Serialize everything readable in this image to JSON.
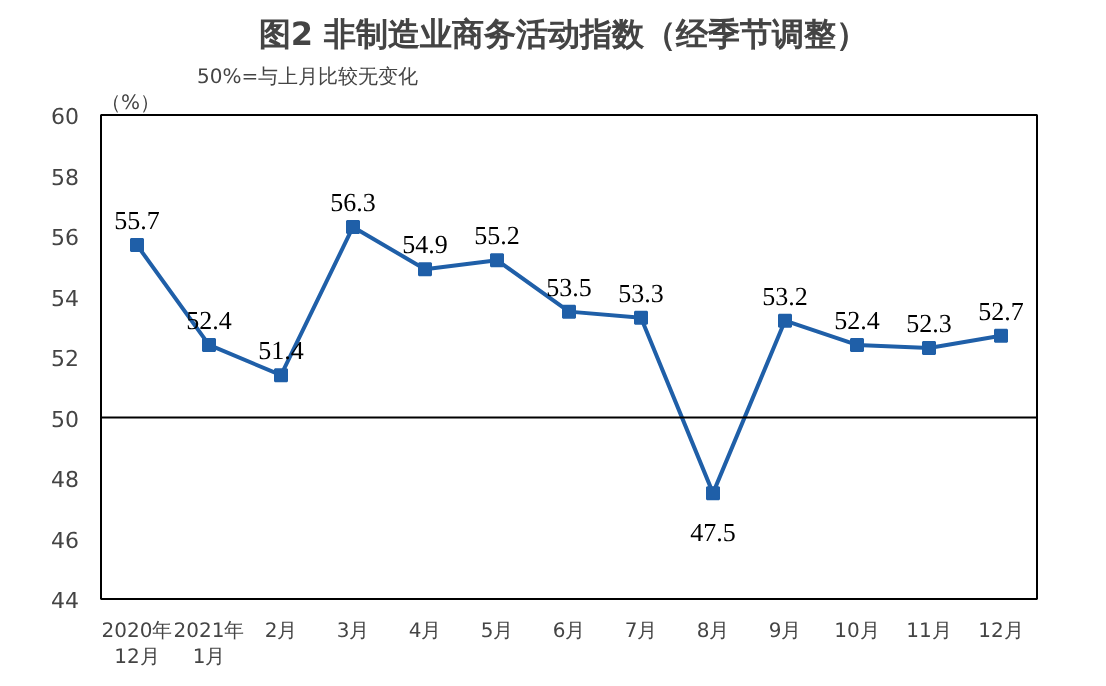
{
  "chart_data": {
    "type": "line",
    "title": "图2  非制造业商务活动指数（经季节调整）",
    "ylabel": "（%）",
    "annotations": [
      "50%=与上月比较无变化"
    ],
    "categories": [
      "2020年\n12月",
      "2021年\n1月",
      "2月",
      "3月",
      "4月",
      "5月",
      "6月",
      "7月",
      "8月",
      "9月",
      "10月",
      "11月",
      "12月"
    ],
    "series": [
      {
        "color": "#1f5fa8",
        "values": [
          55.7,
          52.4,
          51.4,
          56.3,
          54.9,
          55.2,
          53.5,
          53.3,
          47.5,
          53.2,
          52.4,
          52.3,
          52.7
        ]
      }
    ],
    "ylim": [
      44,
      60
    ],
    "yticks": [
      44,
      46,
      48,
      50,
      52,
      54,
      56,
      58,
      60
    ],
    "ref_lines": [
      {
        "axis": "y",
        "value": 50,
        "color": "#000000"
      }
    ],
    "data_labels": true,
    "marker": "square",
    "grid": false
  }
}
